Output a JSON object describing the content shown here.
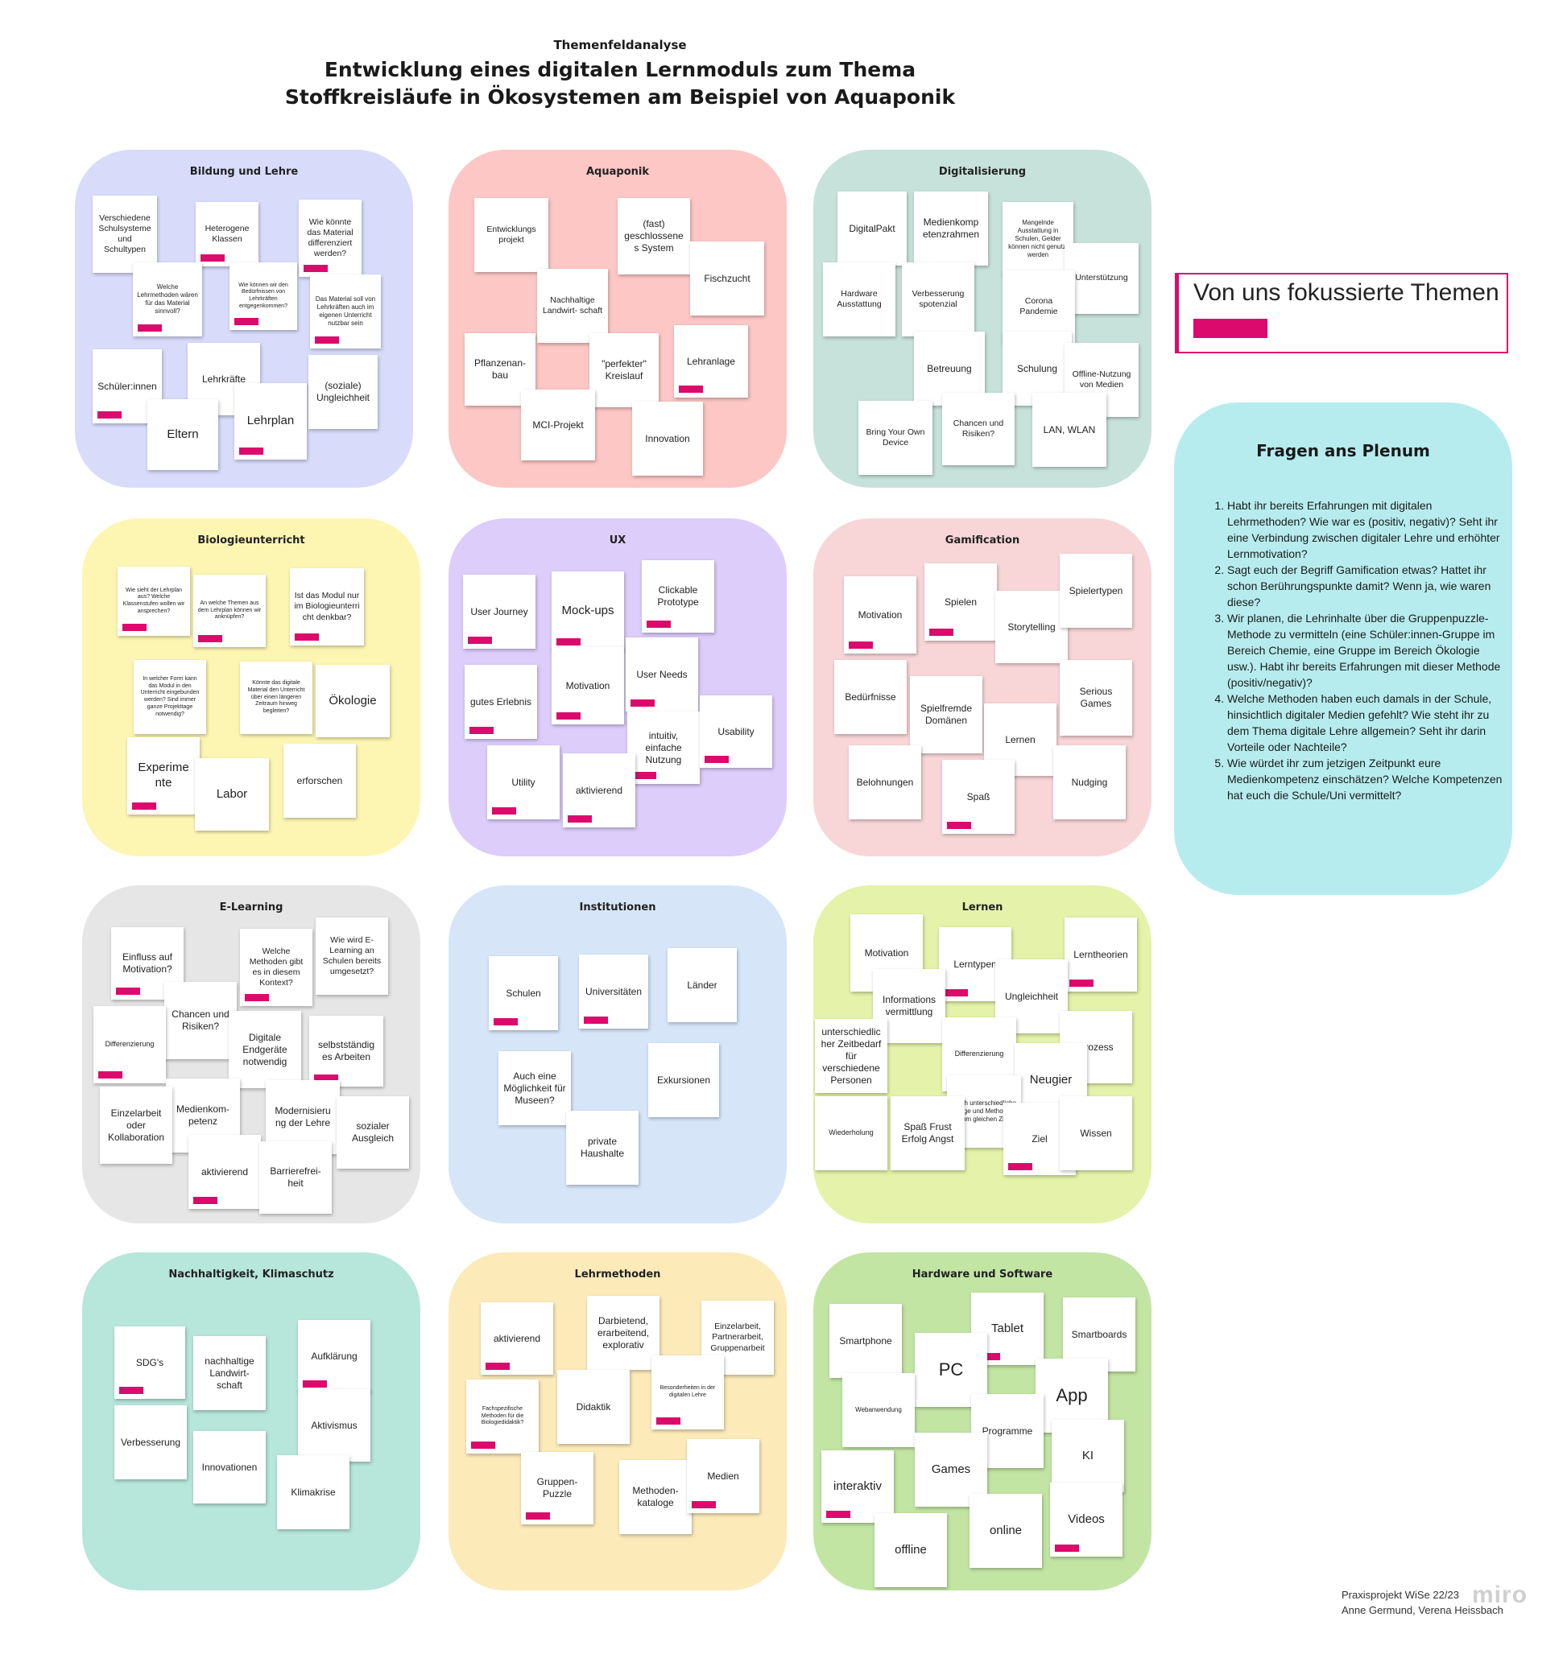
{
  "header": {
    "subtitle": "Themenfeldanalyse",
    "title_line1": "Entwicklung eines digitalen Lernmoduls zum Thema",
    "title_line2": "Stoffkreisläufe in Ökosystemen am Beispiel von Aquaponik"
  },
  "colors": {
    "accent": "#dc0a6c",
    "plenum": "#b6ecee"
  },
  "boards": [
    {
      "title": "Bildung und Lehre",
      "color": "#d8dcfa",
      "notes": [
        {
          "text": "Verschiedene Schulsysteme und Schultypen",
          "tag": false
        },
        {
          "text": "Heterogene Klassen",
          "tag": true
        },
        {
          "text": "Wie könnte das Material differenziert werden?",
          "tag": true
        },
        {
          "text": "Welche Lehrmethoden wären für das Material sinnvoll?",
          "tag": true
        },
        {
          "text": "Wie können wir den Bedürfnissen von Lehrkräften entgegenkommen?",
          "tag": true
        },
        {
          "text": "Das Material soll von Lehrkräften auch im eigenen Unterricht nutzbar sein",
          "tag": true
        },
        {
          "text": "Schüler:innen",
          "tag": true
        },
        {
          "text": "Lehrkräfte",
          "tag": false
        },
        {
          "text": "(soziale) Ungleichheit",
          "tag": false
        },
        {
          "text": "Eltern",
          "tag": false
        },
        {
          "text": "Lehrplan",
          "tag": true
        }
      ]
    },
    {
      "title": "Aquaponik",
      "color": "#fcc7c5",
      "notes": [
        {
          "text": "Entwicklungs projekt",
          "tag": false
        },
        {
          "text": "(fast) geschlossene s System",
          "tag": false
        },
        {
          "text": "Fischzucht",
          "tag": false
        },
        {
          "text": "Nachhaltige Landwirt- schaft",
          "tag": false
        },
        {
          "text": "Pflanzenan- bau",
          "tag": false
        },
        {
          "text": "\"perfekter\" Kreislauf",
          "tag": false
        },
        {
          "text": "Lehranlage",
          "tag": true
        },
        {
          "text": "MCI-Projekt",
          "tag": false
        },
        {
          "text": "Innovation",
          "tag": false
        }
      ]
    },
    {
      "title": "Digitalisierung",
      "color": "#c7e2da",
      "notes": [
        {
          "text": "DigitalPakt",
          "tag": false
        },
        {
          "text": "Medienkomp etenzrahmen",
          "tag": false
        },
        {
          "text": "Mangelnde Ausstattung in Schulen, Gelder können nicht genutzt werden",
          "tag": false
        },
        {
          "text": "Unterstützung",
          "tag": false
        },
        {
          "text": "Hardware Ausstattung",
          "tag": false
        },
        {
          "text": "Verbesserung spotenzial",
          "tag": false
        },
        {
          "text": "Corona Pandemie",
          "tag": false
        },
        {
          "text": "Betreuung",
          "tag": false
        },
        {
          "text": "Schulung",
          "tag": false
        },
        {
          "text": "Offline-Nutzung von Medien",
          "tag": false
        },
        {
          "text": "Bring Your Own Device",
          "tag": false
        },
        {
          "text": "Chancen und Risiken?",
          "tag": false
        },
        {
          "text": "LAN, WLAN",
          "tag": false
        }
      ]
    },
    {
      "title": "Biologieunterricht",
      "color": "#fdf6b3",
      "notes": [
        {
          "text": "Wie sieht der Lehrplan aus? Welche Klassenstufen wollen wir ansprechen?",
          "tag": true
        },
        {
          "text": "An welche Themen aus dem Lehrplan können wir anknüpfen?",
          "tag": true
        },
        {
          "text": "Ist das Modul nur im Biologieunterri cht denkbar?",
          "tag": true
        },
        {
          "text": "In welcher Form kann das Modul in den Unterricht eingebunden werden? Sind immer ganze Projekttage notwendig?",
          "tag": false
        },
        {
          "text": "Könnte das digitale Material den Unterricht über einen längeren Zeitraum hinweg begleiten?",
          "tag": false
        },
        {
          "text": "Ökologie",
          "tag": false
        },
        {
          "text": "Experime nte",
          "tag": true
        },
        {
          "text": "Labor",
          "tag": false
        },
        {
          "text": "erforschen",
          "tag": false
        }
      ]
    },
    {
      "title": "UX",
      "color": "#dccdfb",
      "notes": [
        {
          "text": "User Journey",
          "tag": true
        },
        {
          "text": "Mock-ups",
          "tag": true
        },
        {
          "text": "Clickable Prototype",
          "tag": true
        },
        {
          "text": "gutes Erlebnis",
          "tag": true
        },
        {
          "text": "Motivation",
          "tag": true
        },
        {
          "text": "User Needs",
          "tag": true
        },
        {
          "text": "intuitiv, einfache Nutzung",
          "tag": true
        },
        {
          "text": "Usability",
          "tag": true
        },
        {
          "text": "Utility",
          "tag": true
        },
        {
          "text": "aktivierend",
          "tag": true
        }
      ]
    },
    {
      "title": "Gamification",
      "color": "#f8d6d8",
      "notes": [
        {
          "text": "Motivation",
          "tag": true
        },
        {
          "text": "Spielen",
          "tag": true
        },
        {
          "text": "Storytelling",
          "tag": false
        },
        {
          "text": "Spielertypen",
          "tag": false
        },
        {
          "text": "Bedürfnisse",
          "tag": false
        },
        {
          "text": "Spielfremde Domänen",
          "tag": false
        },
        {
          "text": "Lernen",
          "tag": true
        },
        {
          "text": "Serious Games",
          "tag": false
        },
        {
          "text": "Belohnungen",
          "tag": false
        },
        {
          "text": "Spaß",
          "tag": true
        },
        {
          "text": "Nudging",
          "tag": false
        }
      ]
    },
    {
      "title": "E-Learning",
      "color": "#e6e6e6",
      "notes": [
        {
          "text": "Einfluss auf Motivation?",
          "tag": true
        },
        {
          "text": "Welche Methoden gibt es in diesem Kontext?",
          "tag": true
        },
        {
          "text": "Wie wird E-Learning an Schulen bereits umgesetzt?",
          "tag": false
        },
        {
          "text": "Chancen und Risiken?",
          "tag": false
        },
        {
          "text": "Differenzierung",
          "tag": true
        },
        {
          "text": "Digitale Endgeräte notwendig",
          "tag": false
        },
        {
          "text": "selbstständig es Arbeiten",
          "tag": true
        },
        {
          "text": "Medienkom- petenz",
          "tag": false
        },
        {
          "text": "Einzelarbeit oder Kollaboration",
          "tag": false
        },
        {
          "text": "Modernisieru ng der Lehre",
          "tag": true
        },
        {
          "text": "sozialer Ausgleich",
          "tag": false
        },
        {
          "text": "aktivierend",
          "tag": true
        },
        {
          "text": "Barrierefrei- heit",
          "tag": false
        }
      ]
    },
    {
      "title": "Institutionen",
      "color": "#d6e6f8",
      "notes": [
        {
          "text": "Schulen",
          "tag": true
        },
        {
          "text": "Universitäten",
          "tag": true
        },
        {
          "text": "Länder",
          "tag": false
        },
        {
          "text": "Auch eine Möglichkeit für Museen?",
          "tag": false
        },
        {
          "text": "Exkursionen",
          "tag": false
        },
        {
          "text": "private Haushalte",
          "tag": false
        }
      ]
    },
    {
      "title": "Lernen",
      "color": "#e4f3a9",
      "notes": [
        {
          "text": "Motivation",
          "tag": false
        },
        {
          "text": "Lerntypen",
          "tag": true
        },
        {
          "text": "Lerntheorien",
          "tag": true
        },
        {
          "text": "Informations vermittlung",
          "tag": false
        },
        {
          "text": "Ungleichheit",
          "tag": false
        },
        {
          "text": "unterschiedlic her Zeitbedarf für verschiedene Personen",
          "tag": false
        },
        {
          "text": "Differenzierung",
          "tag": true
        },
        {
          "text": "Prozess",
          "tag": false
        },
        {
          "text": "Neugier",
          "tag": true
        },
        {
          "text": "durch unterschiedliche Wege und Methoden zum gleichen Ziel",
          "tag": false
        },
        {
          "text": "Wiederholung",
          "tag": false
        },
        {
          "text": "Spaß Frust Erfolg Angst",
          "tag": false
        },
        {
          "text": "Ziel",
          "tag": true
        },
        {
          "text": "Wissen",
          "tag": false
        }
      ]
    },
    {
      "title": "Nachhaltigkeit, Klimaschutz",
      "color": "#b7e6db",
      "notes": [
        {
          "text": "SDG's",
          "tag": true
        },
        {
          "text": "nachhaltige Landwirt- schaft",
          "tag": false
        },
        {
          "text": "Aufklärung",
          "tag": true
        },
        {
          "text": "Aktivismus",
          "tag": false
        },
        {
          "text": "Verbesserung",
          "tag": false
        },
        {
          "text": "Innovationen",
          "tag": false
        },
        {
          "text": "Klimakrise",
          "tag": false
        }
      ]
    },
    {
      "title": "Lehrmethoden",
      "color": "#fceab9",
      "notes": [
        {
          "text": "aktivierend",
          "tag": true
        },
        {
          "text": "Darbietend, erarbeitend, explorativ",
          "tag": false
        },
        {
          "text": "Einzelarbeit, Partnerarbeit, Gruppenarbeit",
          "tag": false
        },
        {
          "text": "Besonderheiten in der digitalen Lehre",
          "tag": true
        },
        {
          "text": "Fachspezifische Methoden für die Biologiedidaktik?",
          "tag": true
        },
        {
          "text": "Didaktik",
          "tag": false
        },
        {
          "text": "Gruppen- Puzzle",
          "tag": true
        },
        {
          "text": "Methoden- kataloge",
          "tag": false
        },
        {
          "text": "Medien",
          "tag": true
        }
      ]
    },
    {
      "title": "Hardware und Software",
      "color": "#c2e5a3",
      "notes": [
        {
          "text": "Smartphone",
          "tag": false
        },
        {
          "text": "Tablet",
          "tag": true
        },
        {
          "text": "Smartboards",
          "tag": false
        },
        {
          "text": "PC",
          "tag": false
        },
        {
          "text": "App",
          "tag": false
        },
        {
          "text": "Webanwendung",
          "tag": false
        },
        {
          "text": "Programme",
          "tag": false
        },
        {
          "text": "KI",
          "tag": false
        },
        {
          "text": "interaktiv",
          "tag": true
        },
        {
          "text": "Games",
          "tag": false
        },
        {
          "text": "Videos",
          "tag": true
        },
        {
          "text": "online",
          "tag": false
        },
        {
          "text": "offline",
          "tag": false
        }
      ]
    }
  ],
  "legend": {
    "label": "Von uns fokussierte Themen"
  },
  "plenum": {
    "title": "Fragen ans Plenum",
    "questions": [
      "Habt ihr bereits Erfahrungen mit digitalen Lehrmethoden? Wie war es (positiv, negativ)? Seht ihr eine Verbindung zwischen digitaler Lehre und erhöhter Lernmotivation?",
      "Sagt euch der Begriff Gamification etwas? Hattet ihr schon Berührungspunkte damit? Wenn ja, wie waren diese?",
      "Wir planen, die Lehrinhalte über die Gruppenpuzzle-Methode zu vermitteln (eine Schüler:innen-Gruppe im Bereich Chemie, eine Gruppe im Bereich Ökologie usw.). Habt ihr bereits Erfahrungen mit dieser Methode (positiv/negativ)?",
      "Welche Methoden haben euch damals in der Schule, hinsichtlich digitaler Medien gefehlt? Wie steht ihr zu dem Thema digitale Lehre allgemein? Seht ihr darin Vorteile oder Nachteile?",
      "Wie würdet ihr zum jetzigen Zeitpunkt eure Medienkompetenz einschätzen? Welche Kompetenzen hat euch die Schule/Uni vermittelt?"
    ]
  },
  "footer": {
    "line1": "Praxisprojekt WiSe 22/23",
    "line2": "Anne Germund, Verena Heissbach",
    "brand": "miro"
  }
}
